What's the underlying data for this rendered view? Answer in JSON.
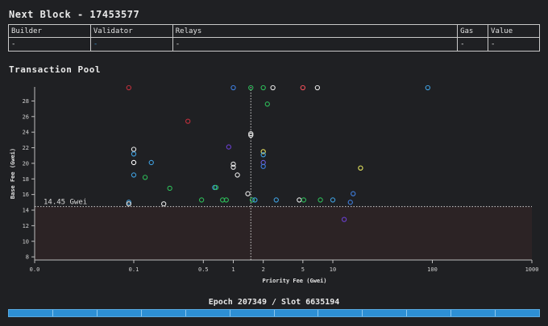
{
  "header": {
    "title": "Next Block - 17453577"
  },
  "block_table": {
    "columns": [
      "Builder",
      "Validator",
      "Relays",
      "Gas",
      "Value"
    ],
    "values": [
      "-",
      "-",
      "-",
      "-",
      "-"
    ]
  },
  "pool": {
    "title": "Transaction Pool"
  },
  "footer": {
    "epoch_label": "Epoch 207349 / Slot 6635194",
    "slot_count": 12,
    "slots_filled": 12
  },
  "colors": {
    "background": "#1f2023",
    "shaded_region": "#2c2325",
    "accent": "#2d8fd5"
  },
  "chart_data": {
    "type": "scatter",
    "xlabel": "Priority Fee (Gwei)",
    "ylabel": "Base Fee (Gwei)",
    "x_scale": "symlog",
    "x_ticks": [
      0.0,
      0.1,
      0.5,
      1,
      2,
      5,
      10,
      100,
      1000
    ],
    "x_tick_labels": [
      "0.0",
      "0.1",
      "0.5",
      "1",
      "2",
      "5",
      "10",
      "100",
      "1000"
    ],
    "y_ticks": [
      8,
      10,
      12,
      14,
      16,
      18,
      20,
      22,
      24,
      26,
      28
    ],
    "ylim": [
      7.6,
      29.8
    ],
    "base_fee_line": {
      "value": 14.45,
      "label": "14.45 Gwei"
    },
    "priority_median_line": 1.5,
    "points": [
      {
        "x": 0.095,
        "y": 29.7,
        "color": "#c0303c"
      },
      {
        "x": 1.0,
        "y": 29.7,
        "color": "#3f7fe0"
      },
      {
        "x": 1.5,
        "y": 29.7,
        "color": "#2ebd5a"
      },
      {
        "x": 2.0,
        "y": 29.7,
        "color": "#2ebd5a"
      },
      {
        "x": 2.5,
        "y": 29.7,
        "color": "#e8e8e8"
      },
      {
        "x": 5.0,
        "y": 29.7,
        "color": "#f0505a"
      },
      {
        "x": 7.0,
        "y": 29.7,
        "color": "#e8e8e8"
      },
      {
        "x": 90,
        "y": 29.7,
        "color": "#3fa0e0"
      },
      {
        "x": 2.2,
        "y": 27.6,
        "color": "#2ebd5a"
      },
      {
        "x": 0.35,
        "y": 25.4,
        "color": "#c0303c"
      },
      {
        "x": 1.5,
        "y": 23.8,
        "color": "#e8e8e8"
      },
      {
        "x": 1.5,
        "y": 23.6,
        "color": "#e8e8e8"
      },
      {
        "x": 0.9,
        "y": 22.1,
        "color": "#6a3fd0"
      },
      {
        "x": 0.1,
        "y": 21.8,
        "color": "#e8e8e8"
      },
      {
        "x": 2.0,
        "y": 21.5,
        "color": "#e8e060"
      },
      {
        "x": 0.1,
        "y": 21.2,
        "color": "#3fa0e0"
      },
      {
        "x": 2.0,
        "y": 21.1,
        "color": "#3fa0e0"
      },
      {
        "x": 0.1,
        "y": 20.1,
        "color": "#ffffff"
      },
      {
        "x": 0.15,
        "y": 20.1,
        "color": "#3fa0e0"
      },
      {
        "x": 2.0,
        "y": 20.1,
        "color": "#6a5fe0"
      },
      {
        "x": 1.0,
        "y": 19.9,
        "color": "#e8e8e8"
      },
      {
        "x": 1.0,
        "y": 19.5,
        "color": "#e8e8e8"
      },
      {
        "x": 2.0,
        "y": 19.6,
        "color": "#3f7fe0"
      },
      {
        "x": 19.0,
        "y": 19.4,
        "color": "#e8e860"
      },
      {
        "x": 0.1,
        "y": 18.5,
        "color": "#3fa0e0"
      },
      {
        "x": 1.1,
        "y": 18.5,
        "color": "#e8e8e8"
      },
      {
        "x": 0.13,
        "y": 18.2,
        "color": "#2ebd5a"
      },
      {
        "x": 0.23,
        "y": 16.8,
        "color": "#2ebd5a"
      },
      {
        "x": 0.65,
        "y": 16.9,
        "color": "#3fa0e0"
      },
      {
        "x": 0.67,
        "y": 16.9,
        "color": "#2ebd5a"
      },
      {
        "x": 1.4,
        "y": 16.1,
        "color": "#e8e8e8"
      },
      {
        "x": 16.0,
        "y": 16.1,
        "color": "#3f7fe0"
      },
      {
        "x": 0.48,
        "y": 15.3,
        "color": "#2ebd5a"
      },
      {
        "x": 0.78,
        "y": 15.3,
        "color": "#2ebd5a"
      },
      {
        "x": 0.85,
        "y": 15.3,
        "color": "#2ebd5a"
      },
      {
        "x": 1.55,
        "y": 15.3,
        "color": "#2ebd5a"
      },
      {
        "x": 1.65,
        "y": 15.3,
        "color": "#3fa0e0"
      },
      {
        "x": 2.7,
        "y": 15.3,
        "color": "#3fa0e0"
      },
      {
        "x": 4.6,
        "y": 15.3,
        "color": "#e8e8e8"
      },
      {
        "x": 5.1,
        "y": 15.3,
        "color": "#2ebd5a"
      },
      {
        "x": 7.5,
        "y": 15.3,
        "color": "#2ebd5a"
      },
      {
        "x": 10.0,
        "y": 15.3,
        "color": "#3fa0e0"
      },
      {
        "x": 15.0,
        "y": 15.0,
        "color": "#3f7fe0"
      },
      {
        "x": 0.095,
        "y": 15.0,
        "color": "#3fa0e0"
      },
      {
        "x": 0.095,
        "y": 14.8,
        "color": "#e8e8e8"
      },
      {
        "x": 0.2,
        "y": 14.8,
        "color": "#e8e8e8"
      },
      {
        "x": 13.0,
        "y": 12.8,
        "color": "#6a3fd0"
      }
    ]
  }
}
